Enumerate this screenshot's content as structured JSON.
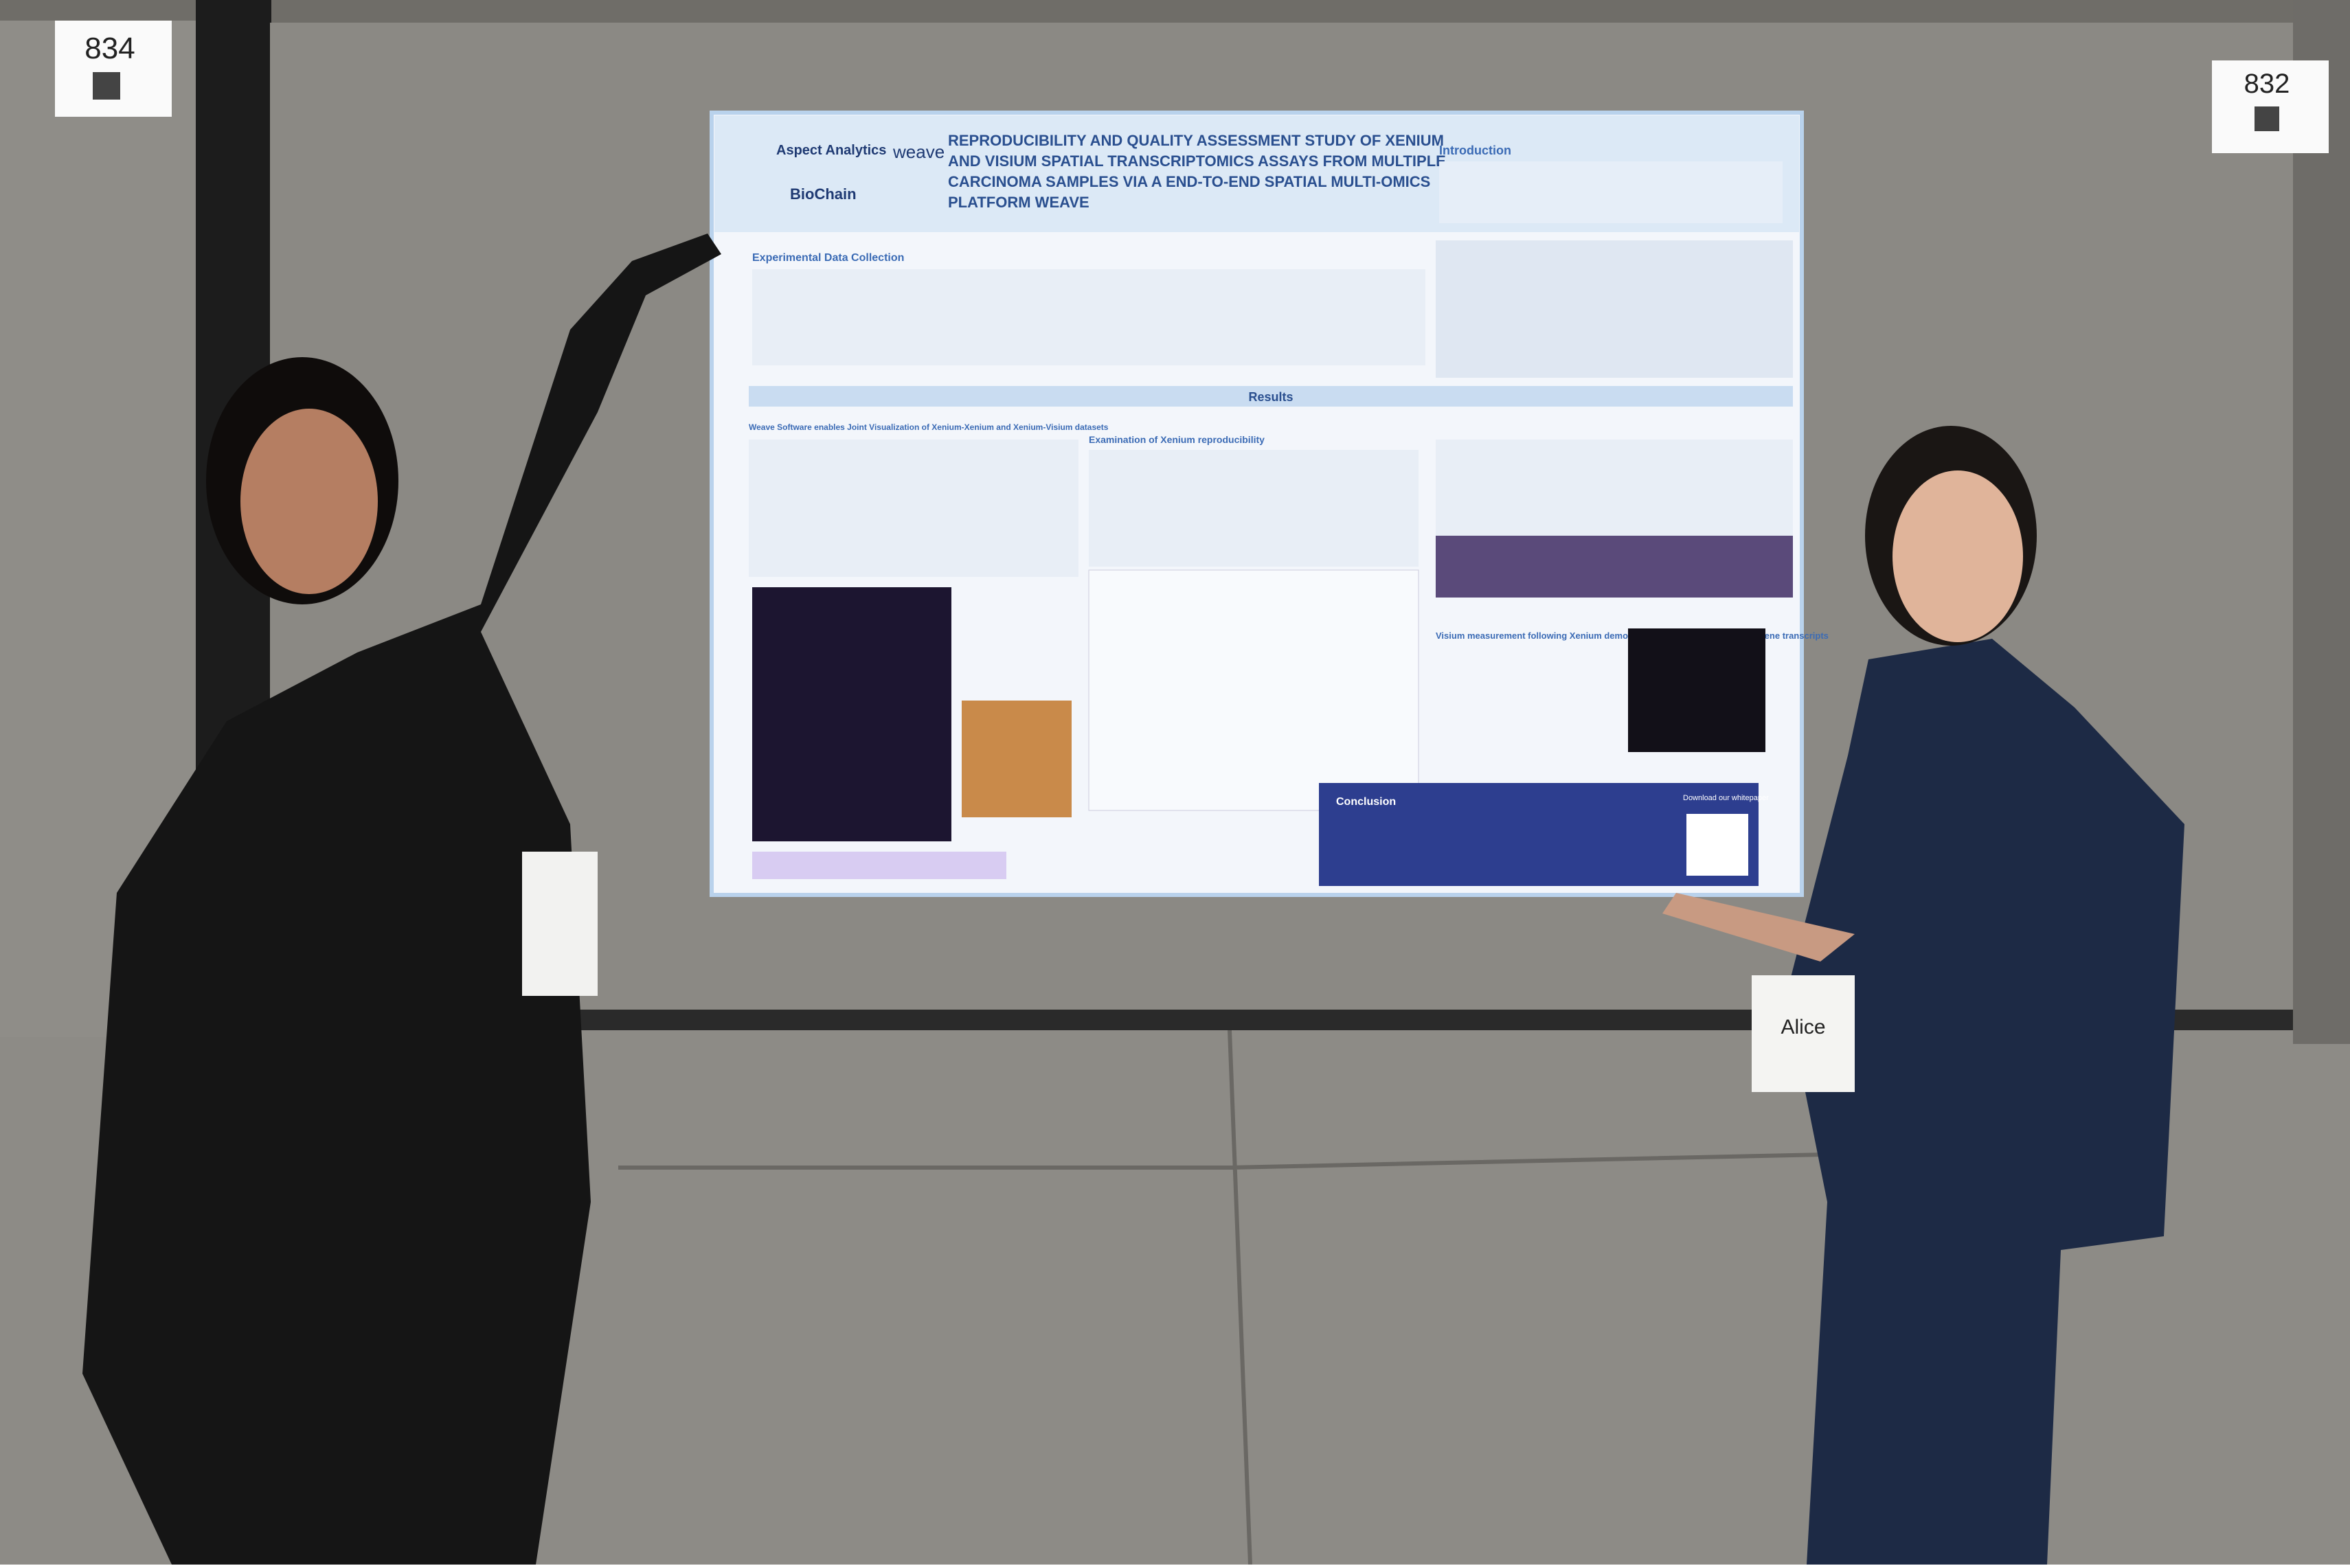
{
  "signs": {
    "left": "834",
    "right": "832"
  },
  "poster": {
    "logos": [
      "Aspect Analytics",
      "weave",
      "BioChain"
    ],
    "title_lines": [
      "REPRODUCIBILITY AND QUALITY ASSESSMENT STUDY OF XENIUM",
      "AND VISIUM SPATIAL TRANSCRIPTOMICS ASSAYS FROM MULTIPLE",
      "CARCINOMA SAMPLES VIA A END-TO-END SPATIAL MULTI-OMICS",
      "PLATFORM WEAVE"
    ],
    "sections": {
      "introduction": "Introduction",
      "experimental": "Experimental Data Collection",
      "results": "Results",
      "weave": "Weave Software enables Joint Visualization of Xenium-Xenium and Xenium-Visium datasets",
      "xenium": "Examination of Xenium reproducibility",
      "visium": "Visium measurement following Xenium demonstrates similar distribution of gene transcripts",
      "conclusion": "Conclusion",
      "download": "Download our whitepaper"
    }
  },
  "badge": {
    "name": "Alice"
  }
}
